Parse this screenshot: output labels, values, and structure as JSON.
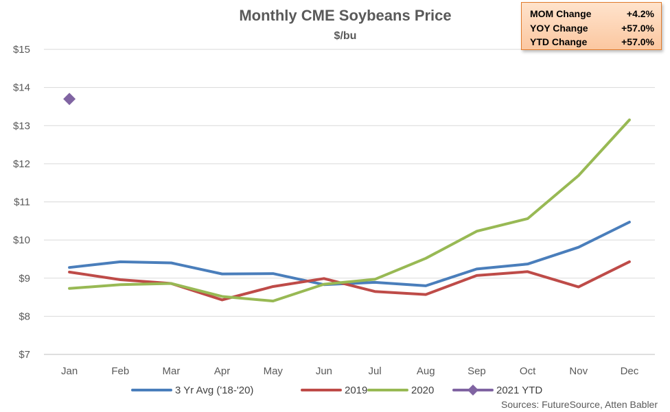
{
  "summary_box": {
    "rows": [
      {
        "label": "MOM Change",
        "value": "+4.2%"
      },
      {
        "label": "YOY Change",
        "value": "+57.0%"
      },
      {
        "label": "YTD Change",
        "value": "+57.0%"
      }
    ]
  },
  "source_note": "Sources: FutureSource, Atten Babler",
  "chart_data": {
    "type": "line",
    "title": "Monthly CME Soybeans Price",
    "subtitle": "$/bu",
    "categories": [
      "Jan",
      "Feb",
      "Mar",
      "Apr",
      "May",
      "Jun",
      "Jul",
      "Aug",
      "Sep",
      "Oct",
      "Nov",
      "Dec"
    ],
    "ylim": [
      7,
      15
    ],
    "yticks": [
      7,
      8,
      9,
      10,
      11,
      12,
      13,
      14,
      15
    ],
    "ytick_labels": [
      "$7",
      "$8",
      "$9",
      "$10",
      "$11",
      "$12",
      "$13",
      "$14",
      "$15"
    ],
    "grid": true,
    "legend_position": "bottom",
    "series": [
      {
        "name": "3 Yr Avg ('18-'20)",
        "color": "#4a7ebb",
        "marker": "line",
        "values": [
          9.28,
          9.43,
          9.4,
          9.11,
          9.12,
          8.83,
          8.89,
          8.8,
          9.24,
          9.37,
          9.81,
          10.47
        ]
      },
      {
        "name": "2019",
        "color": "#be4b48",
        "marker": "line",
        "values": [
          9.16,
          8.96,
          8.86,
          8.43,
          8.78,
          8.99,
          8.65,
          8.57,
          9.07,
          9.17,
          8.77,
          9.43
        ]
      },
      {
        "name": "2020",
        "color": "#98b954",
        "marker": "line",
        "values": [
          8.73,
          8.83,
          8.86,
          8.52,
          8.4,
          8.84,
          8.97,
          9.52,
          10.23,
          10.56,
          11.69,
          13.15
        ]
      },
      {
        "name": "2021 YTD",
        "color": "#8064a2",
        "marker": "diamond",
        "values": [
          13.7,
          null,
          null,
          null,
          null,
          null,
          null,
          null,
          null,
          null,
          null,
          null
        ]
      }
    ]
  }
}
